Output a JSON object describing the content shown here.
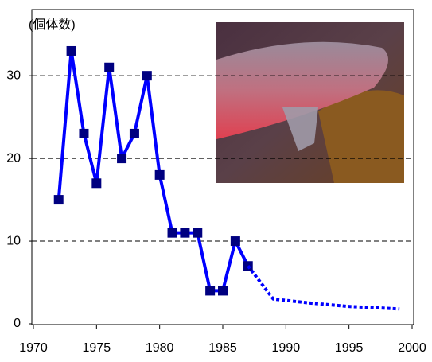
{
  "chart_data": {
    "type": "line",
    "y_label": "(個体数)",
    "series": [
      {
        "color": "#0000ff",
        "marker_color": "#000080",
        "style": "solid",
        "x": [
          1972,
          1973,
          1974,
          1975,
          1976,
          1977,
          1978,
          1979,
          1980,
          1981,
          1982,
          1983,
          1984,
          1985,
          1986,
          1987
        ],
        "values": [
          15,
          33,
          23,
          17,
          31,
          20,
          23,
          30,
          18,
          11,
          11,
          11,
          4,
          4,
          10,
          7
        ]
      },
      {
        "color": "#0000ff",
        "style": "dotted",
        "x": [
          1987,
          1989,
          1992,
          1995,
          1999
        ],
        "values": [
          7,
          3,
          2.5,
          2.1,
          1.8
        ]
      }
    ],
    "xlim": [
      1970,
      2000
    ],
    "xticks": [
      1970,
      1975,
      1980,
      1985,
      1990,
      1995,
      2000
    ],
    "ylim": [
      0,
      38
    ],
    "yticks": [
      0,
      10,
      20,
      30
    ],
    "grid": true
  }
}
